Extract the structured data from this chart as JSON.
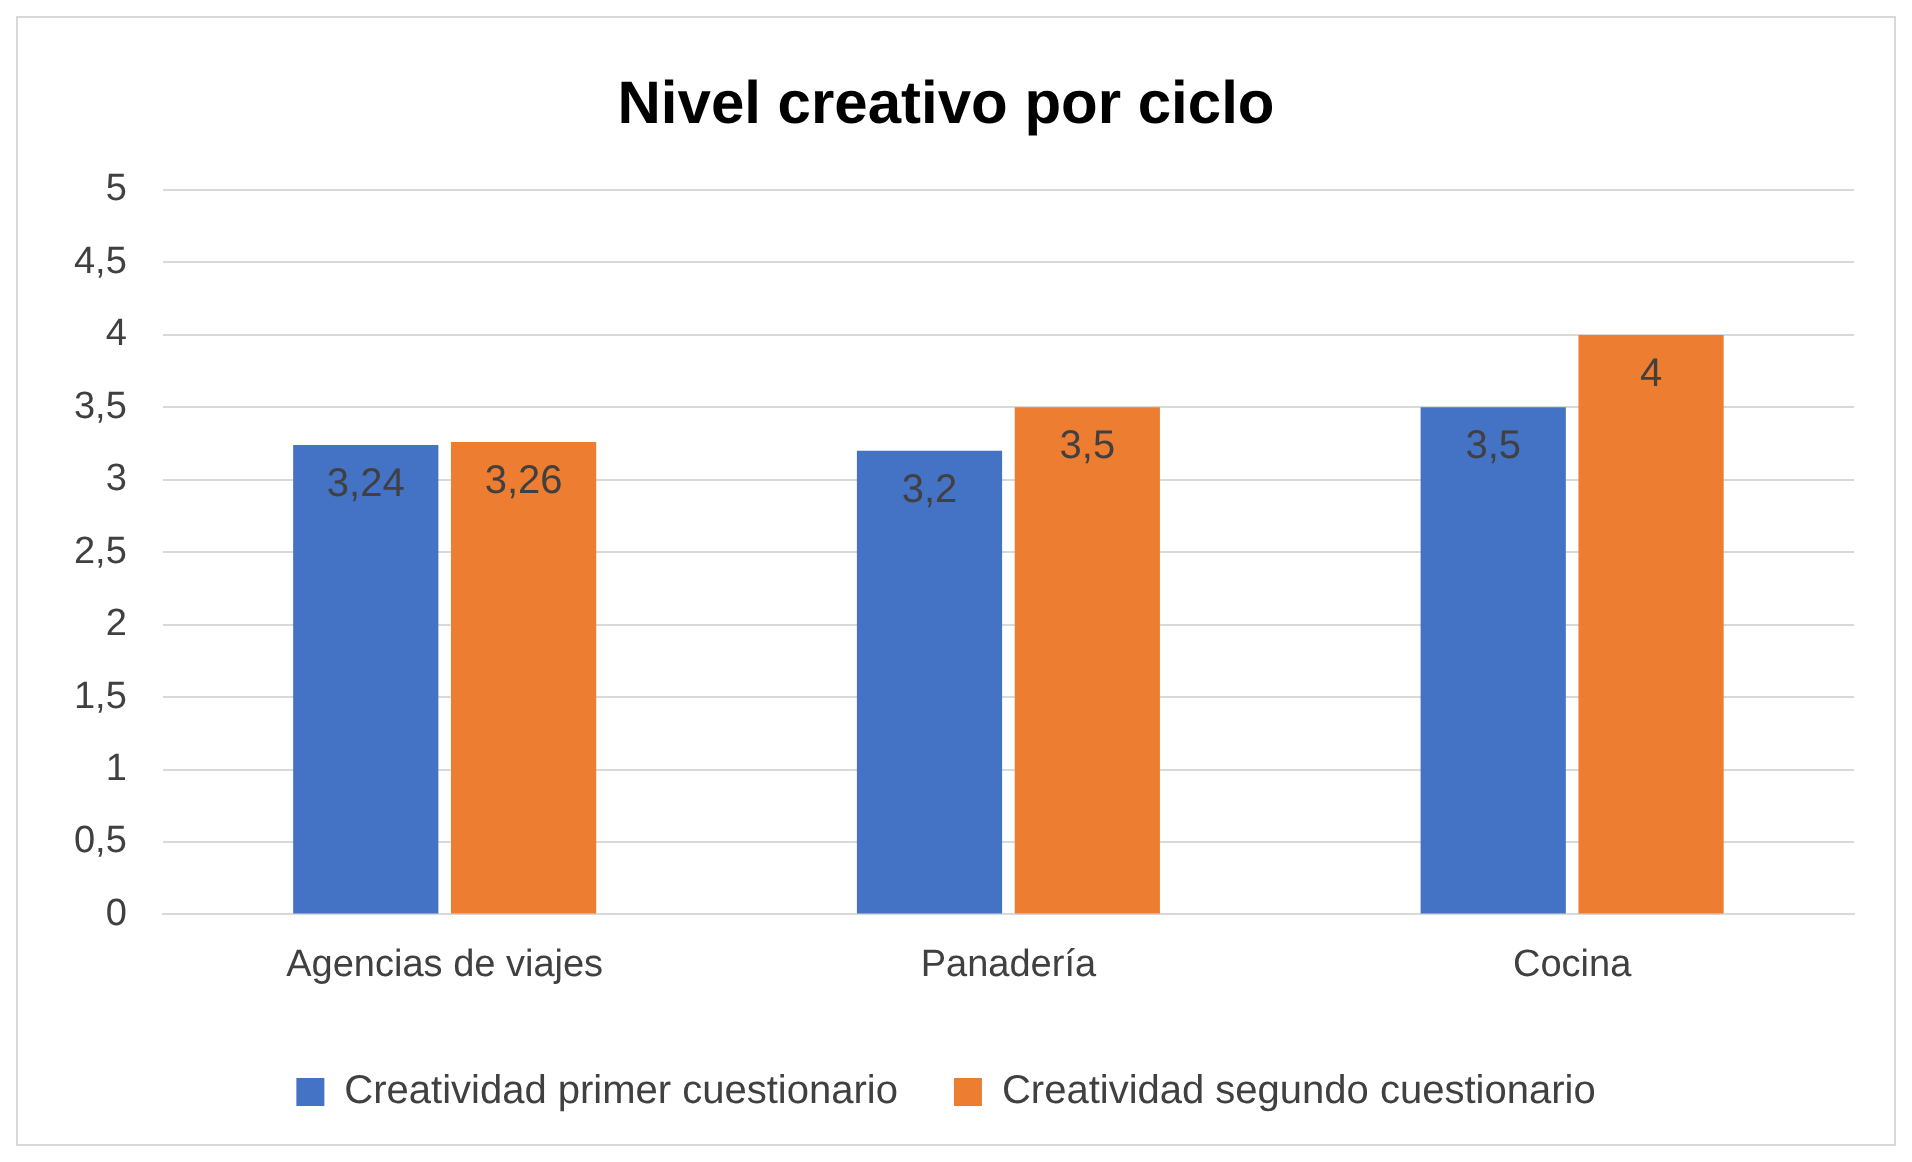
{
  "chart_data": {
    "type": "bar",
    "title": "Nivel creativo por ciclo",
    "categories": [
      "Agencias de viajes",
      "Panadería",
      "Cocina"
    ],
    "series": [
      {
        "name": "Creatividad primer cuestionario",
        "color": "#4472c4",
        "values": [
          3.24,
          3.2,
          3.5
        ],
        "value_labels": [
          "3,24",
          "3,2",
          "3,5"
        ]
      },
      {
        "name": "Creatividad segundo cuestionario",
        "color": "#ed7d31",
        "values": [
          3.26,
          3.5,
          4
        ],
        "value_labels": [
          "3,26",
          "3,5",
          "4"
        ]
      }
    ],
    "ylim": [
      0,
      5
    ],
    "yticks": [
      0,
      {
        "value": 0.5,
        "label": "0,5"
      },
      1,
      {
        "value": 1.5,
        "label": "1,5"
      },
      2,
      {
        "value": 2.5,
        "label": "2,5"
      },
      3,
      {
        "value": 3.5,
        "label": "3,5"
      },
      4,
      {
        "value": 4.5,
        "label": "4,5"
      },
      5
    ],
    "grid": "y",
    "legend": "bottom"
  }
}
